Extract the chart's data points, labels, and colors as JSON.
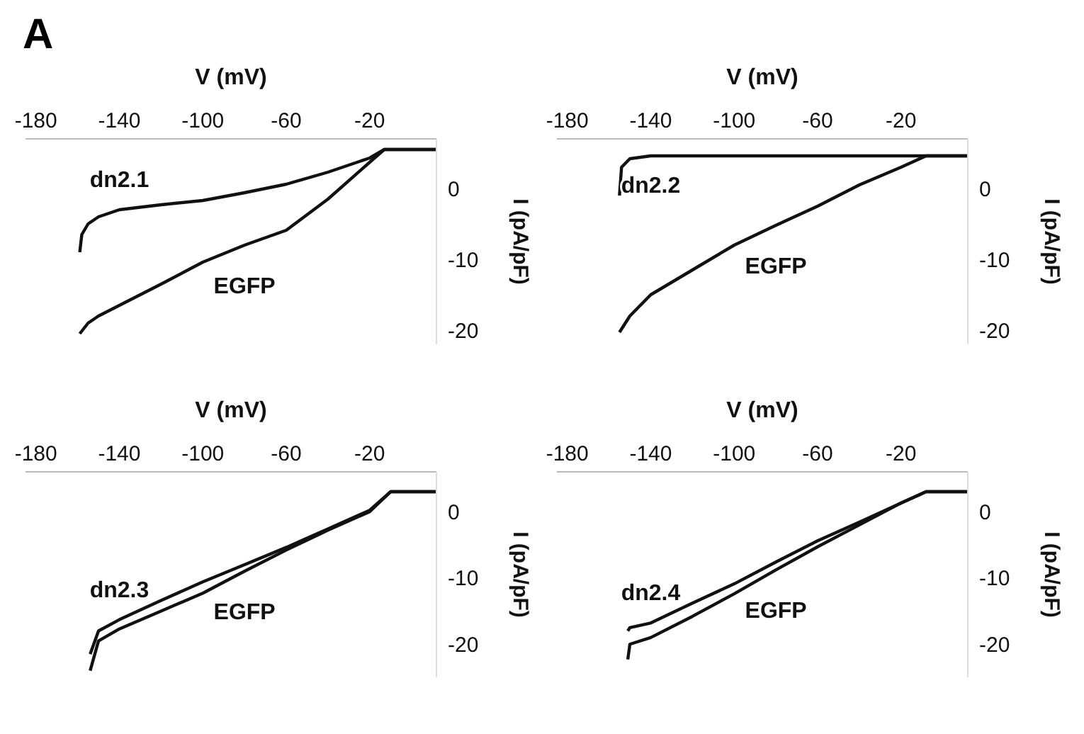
{
  "chart_data": [
    {
      "type": "line",
      "annotations": [
        "A"
      ],
      "xlabel": "V (mV)",
      "ylabel": "I (pA/pF)",
      "xlim": [
        -185,
        12
      ],
      "xticks": [
        -180,
        -140,
        -100,
        -60,
        -20
      ],
      "ylim": [
        -22,
        7
      ],
      "yticks": [
        0,
        -10,
        -20
      ],
      "grid": false,
      "legend": false,
      "series": [
        {
          "name": "dn2.1",
          "color": "#111111",
          "x": [
            -159,
            -158,
            -155,
            -150,
            -140,
            -120,
            -100,
            -80,
            -60,
            -40,
            -20,
            -13,
            12
          ],
          "values": [
            -9,
            -6.5,
            -5,
            -4,
            -3,
            -2.3,
            -1.7,
            -0.6,
            0.6,
            2.3,
            4.3,
            5.5,
            5.5
          ]
        },
        {
          "name": "EGFP",
          "color": "#111111",
          "x": [
            -159,
            -155,
            -150,
            -140,
            -120,
            -100,
            -80,
            -60,
            -40,
            -20,
            -13,
            12
          ],
          "values": [
            -20.5,
            -19,
            -18,
            -16.5,
            -13.5,
            -10.4,
            -8,
            -5.9,
            -1.5,
            3.7,
            5.5,
            5.5
          ]
        }
      ]
    },
    {
      "type": "line",
      "xlabel": "V (mV)",
      "ylabel": "I (pA/pF)",
      "xlim": [
        -185,
        12
      ],
      "xticks": [
        -180,
        -140,
        -100,
        -60,
        -20
      ],
      "ylim": [
        -22,
        7
      ],
      "yticks": [
        0,
        -10,
        -20
      ],
      "grid": false,
      "legend": false,
      "series": [
        {
          "name": "dn2.2",
          "color": "#111111",
          "x": [
            -155,
            -154,
            -150,
            -145,
            -140,
            -100,
            -60,
            -20,
            12
          ],
          "values": [
            -1,
            3,
            4.2,
            4.4,
            4.6,
            4.6,
            4.6,
            4.6,
            4.6
          ]
        },
        {
          "name": "EGFP",
          "color": "#111111",
          "x": [
            -155,
            -150,
            -140,
            -120,
            -100,
            -80,
            -60,
            -40,
            -20,
            -8,
            12
          ],
          "values": [
            -20.3,
            -18,
            -15,
            -11.5,
            -8,
            -5.2,
            -2.5,
            0.5,
            3,
            4.6,
            4.6
          ]
        }
      ]
    },
    {
      "type": "line",
      "xlabel": "V (mV)",
      "ylabel": "I (pA/pF)",
      "xlim": [
        -185,
        12
      ],
      "xticks": [
        -180,
        -140,
        -100,
        -60,
        -20
      ],
      "ylim": [
        -25,
        6
      ],
      "yticks": [
        0,
        -10,
        -20
      ],
      "grid": false,
      "legend": false,
      "series": [
        {
          "name": "dn2.3",
          "color": "#111111",
          "x": [
            -154,
            -150,
            -140,
            -120,
            -100,
            -80,
            -60,
            -40,
            -20,
            -10,
            12
          ],
          "values": [
            -21.5,
            -18,
            -16.3,
            -13.4,
            -10.6,
            -8,
            -5.4,
            -2.6,
            0.2,
            3,
            3
          ]
        },
        {
          "name": "EGFP",
          "color": "#111111",
          "x": [
            -154,
            -150,
            -140,
            -120,
            -100,
            -80,
            -60,
            -40,
            -20,
            -10,
            12
          ],
          "values": [
            -24,
            -19.5,
            -17.7,
            -15,
            -12.3,
            -9,
            -5.8,
            -2.8,
            0,
            3,
            3
          ]
        }
      ]
    },
    {
      "type": "line",
      "xlabel": "V (mV)",
      "ylabel": "I (pA/pF)",
      "xlim": [
        -185,
        12
      ],
      "xticks": [
        -180,
        -140,
        -100,
        -60,
        -20
      ],
      "ylim": [
        -25,
        6
      ],
      "yticks": [
        0,
        -10,
        -20
      ],
      "grid": false,
      "legend": false,
      "series": [
        {
          "name": "dn2.4",
          "color": "#111111",
          "x": [
            -151,
            -150,
            -140,
            -120,
            -100,
            -80,
            -60,
            -40,
            -20,
            -8,
            12
          ],
          "values": [
            -18,
            -17.5,
            -16.8,
            -13.8,
            -10.9,
            -7.6,
            -4.4,
            -1.6,
            1.3,
            3,
            3
          ]
        },
        {
          "name": "EGFP",
          "color": "#111111",
          "x": [
            -151,
            -150,
            -140,
            -120,
            -100,
            -80,
            -60,
            -40,
            -20,
            -8,
            12
          ],
          "values": [
            -22.3,
            -20,
            -19,
            -15.8,
            -12.4,
            -8.8,
            -5.3,
            -2,
            1.3,
            3,
            3
          ]
        }
      ]
    }
  ]
}
